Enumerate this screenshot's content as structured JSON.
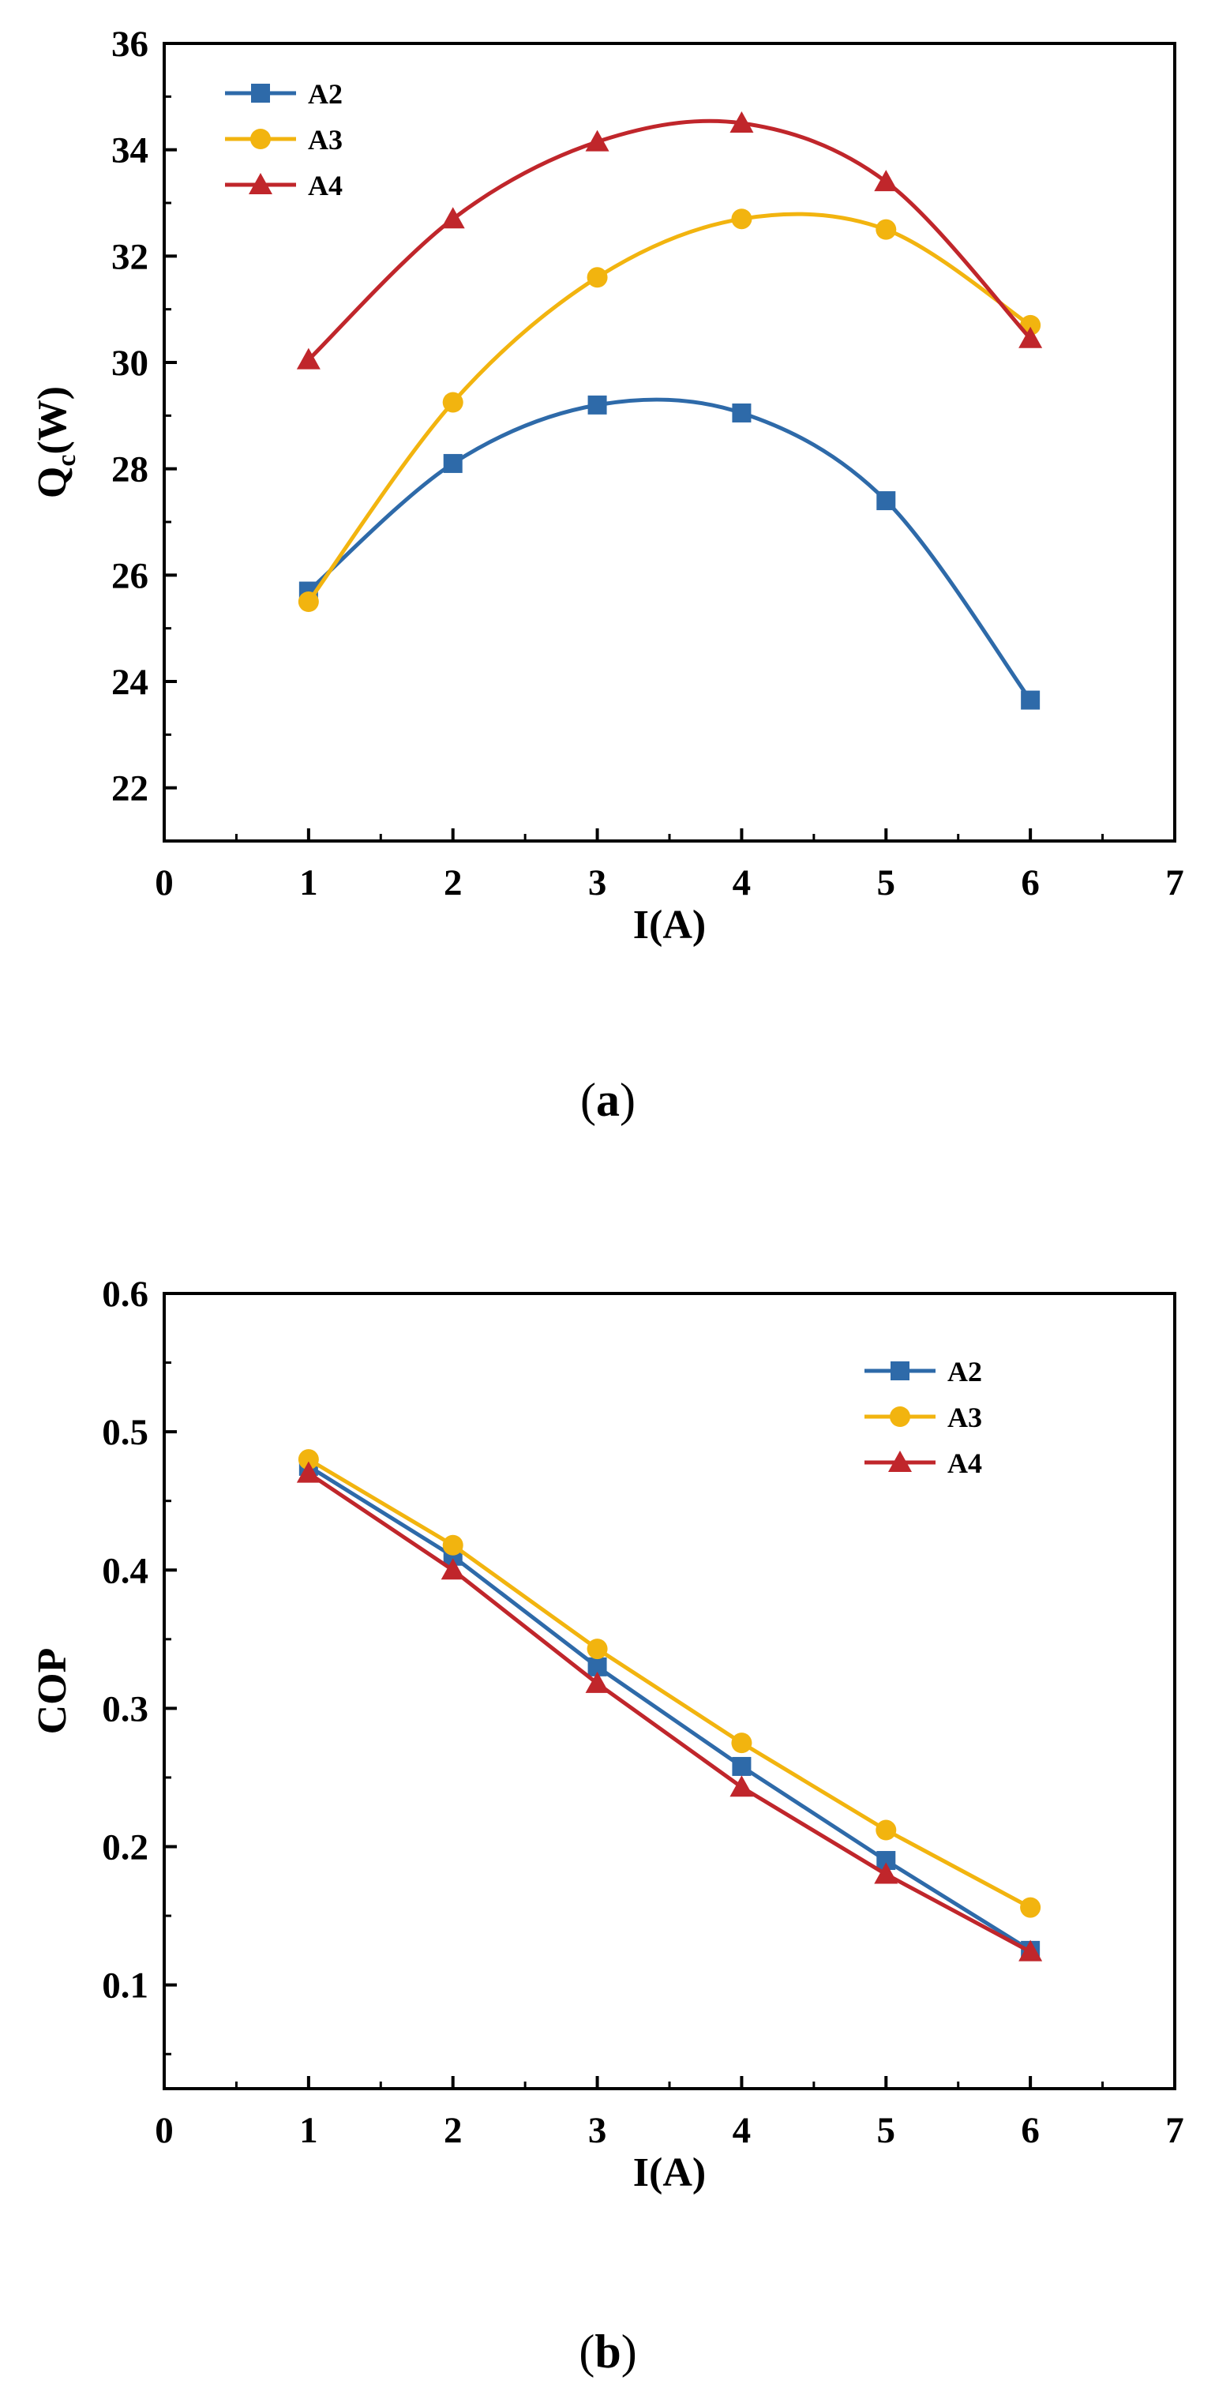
{
  "colors": {
    "A2": "#2e6aa9",
    "A3": "#f2b40f",
    "A4": "#c0262b",
    "axis": "#000000"
  },
  "chart_data": [
    {
      "type": "line",
      "panel_label": "a",
      "xlabel": "I(A)",
      "ylabel_main": "Q",
      "ylabel_sub": "c",
      "ylabel_rest": "(W)",
      "xlim": [
        0,
        7
      ],
      "ylim": [
        21,
        36
      ],
      "xticks": [
        0,
        1,
        2,
        3,
        4,
        5,
        6,
        7
      ],
      "yticks": [
        22,
        24,
        26,
        28,
        30,
        32,
        34,
        36
      ],
      "x_tick_labels": [
        "0",
        "1",
        "2",
        "3",
        "4",
        "5",
        "6",
        "7"
      ],
      "y_tick_labels": [
        "22",
        "24",
        "26",
        "28",
        "30",
        "32",
        "34",
        "36"
      ],
      "x": [
        1,
        2,
        3,
        4,
        5,
        6
      ],
      "legend_position": "top-left",
      "curve": "smooth",
      "series": [
        {
          "name": "A2",
          "marker": "square",
          "color": "#2e6aa9",
          "values": [
            25.7,
            28.1,
            29.2,
            29.05,
            27.4,
            23.65
          ]
        },
        {
          "name": "A3",
          "marker": "circle",
          "color": "#f2b40f",
          "values": [
            25.5,
            29.25,
            31.6,
            32.7,
            32.5,
            30.7
          ]
        },
        {
          "name": "A4",
          "marker": "triangle",
          "color": "#c0262b",
          "values": [
            30.05,
            32.7,
            34.15,
            34.5,
            33.4,
            30.45
          ]
        }
      ]
    },
    {
      "type": "line",
      "panel_label": "b",
      "xlabel": "I(A)",
      "ylabel_main": "COP",
      "ylabel_sub": "",
      "ylabel_rest": "",
      "xlim": [
        0,
        7
      ],
      "ylim": [
        0.025,
        0.6
      ],
      "xticks": [
        0,
        1,
        2,
        3,
        4,
        5,
        6,
        7
      ],
      "yticks": [
        0.1,
        0.2,
        0.3,
        0.4,
        0.5,
        0.6
      ],
      "x_tick_labels": [
        "0",
        "1",
        "2",
        "3",
        "4",
        "5",
        "6",
        "7"
      ],
      "y_tick_labels": [
        "0.1",
        "0.2",
        "0.3",
        "0.4",
        "0.5",
        "0.6"
      ],
      "x": [
        1,
        2,
        3,
        4,
        5,
        6
      ],
      "legend_position": "top-right",
      "curve": "straight",
      "series": [
        {
          "name": "A2",
          "marker": "square",
          "color": "#2e6aa9",
          "values": [
            0.475,
            0.41,
            0.33,
            0.258,
            0.19,
            0.125
          ]
        },
        {
          "name": "A3",
          "marker": "circle",
          "color": "#f2b40f",
          "values": [
            0.48,
            0.418,
            0.343,
            0.275,
            0.212,
            0.156
          ]
        },
        {
          "name": "A4",
          "marker": "triangle",
          "color": "#c0262b",
          "values": [
            0.47,
            0.4,
            0.318,
            0.243,
            0.18,
            0.124
          ]
        }
      ]
    }
  ]
}
